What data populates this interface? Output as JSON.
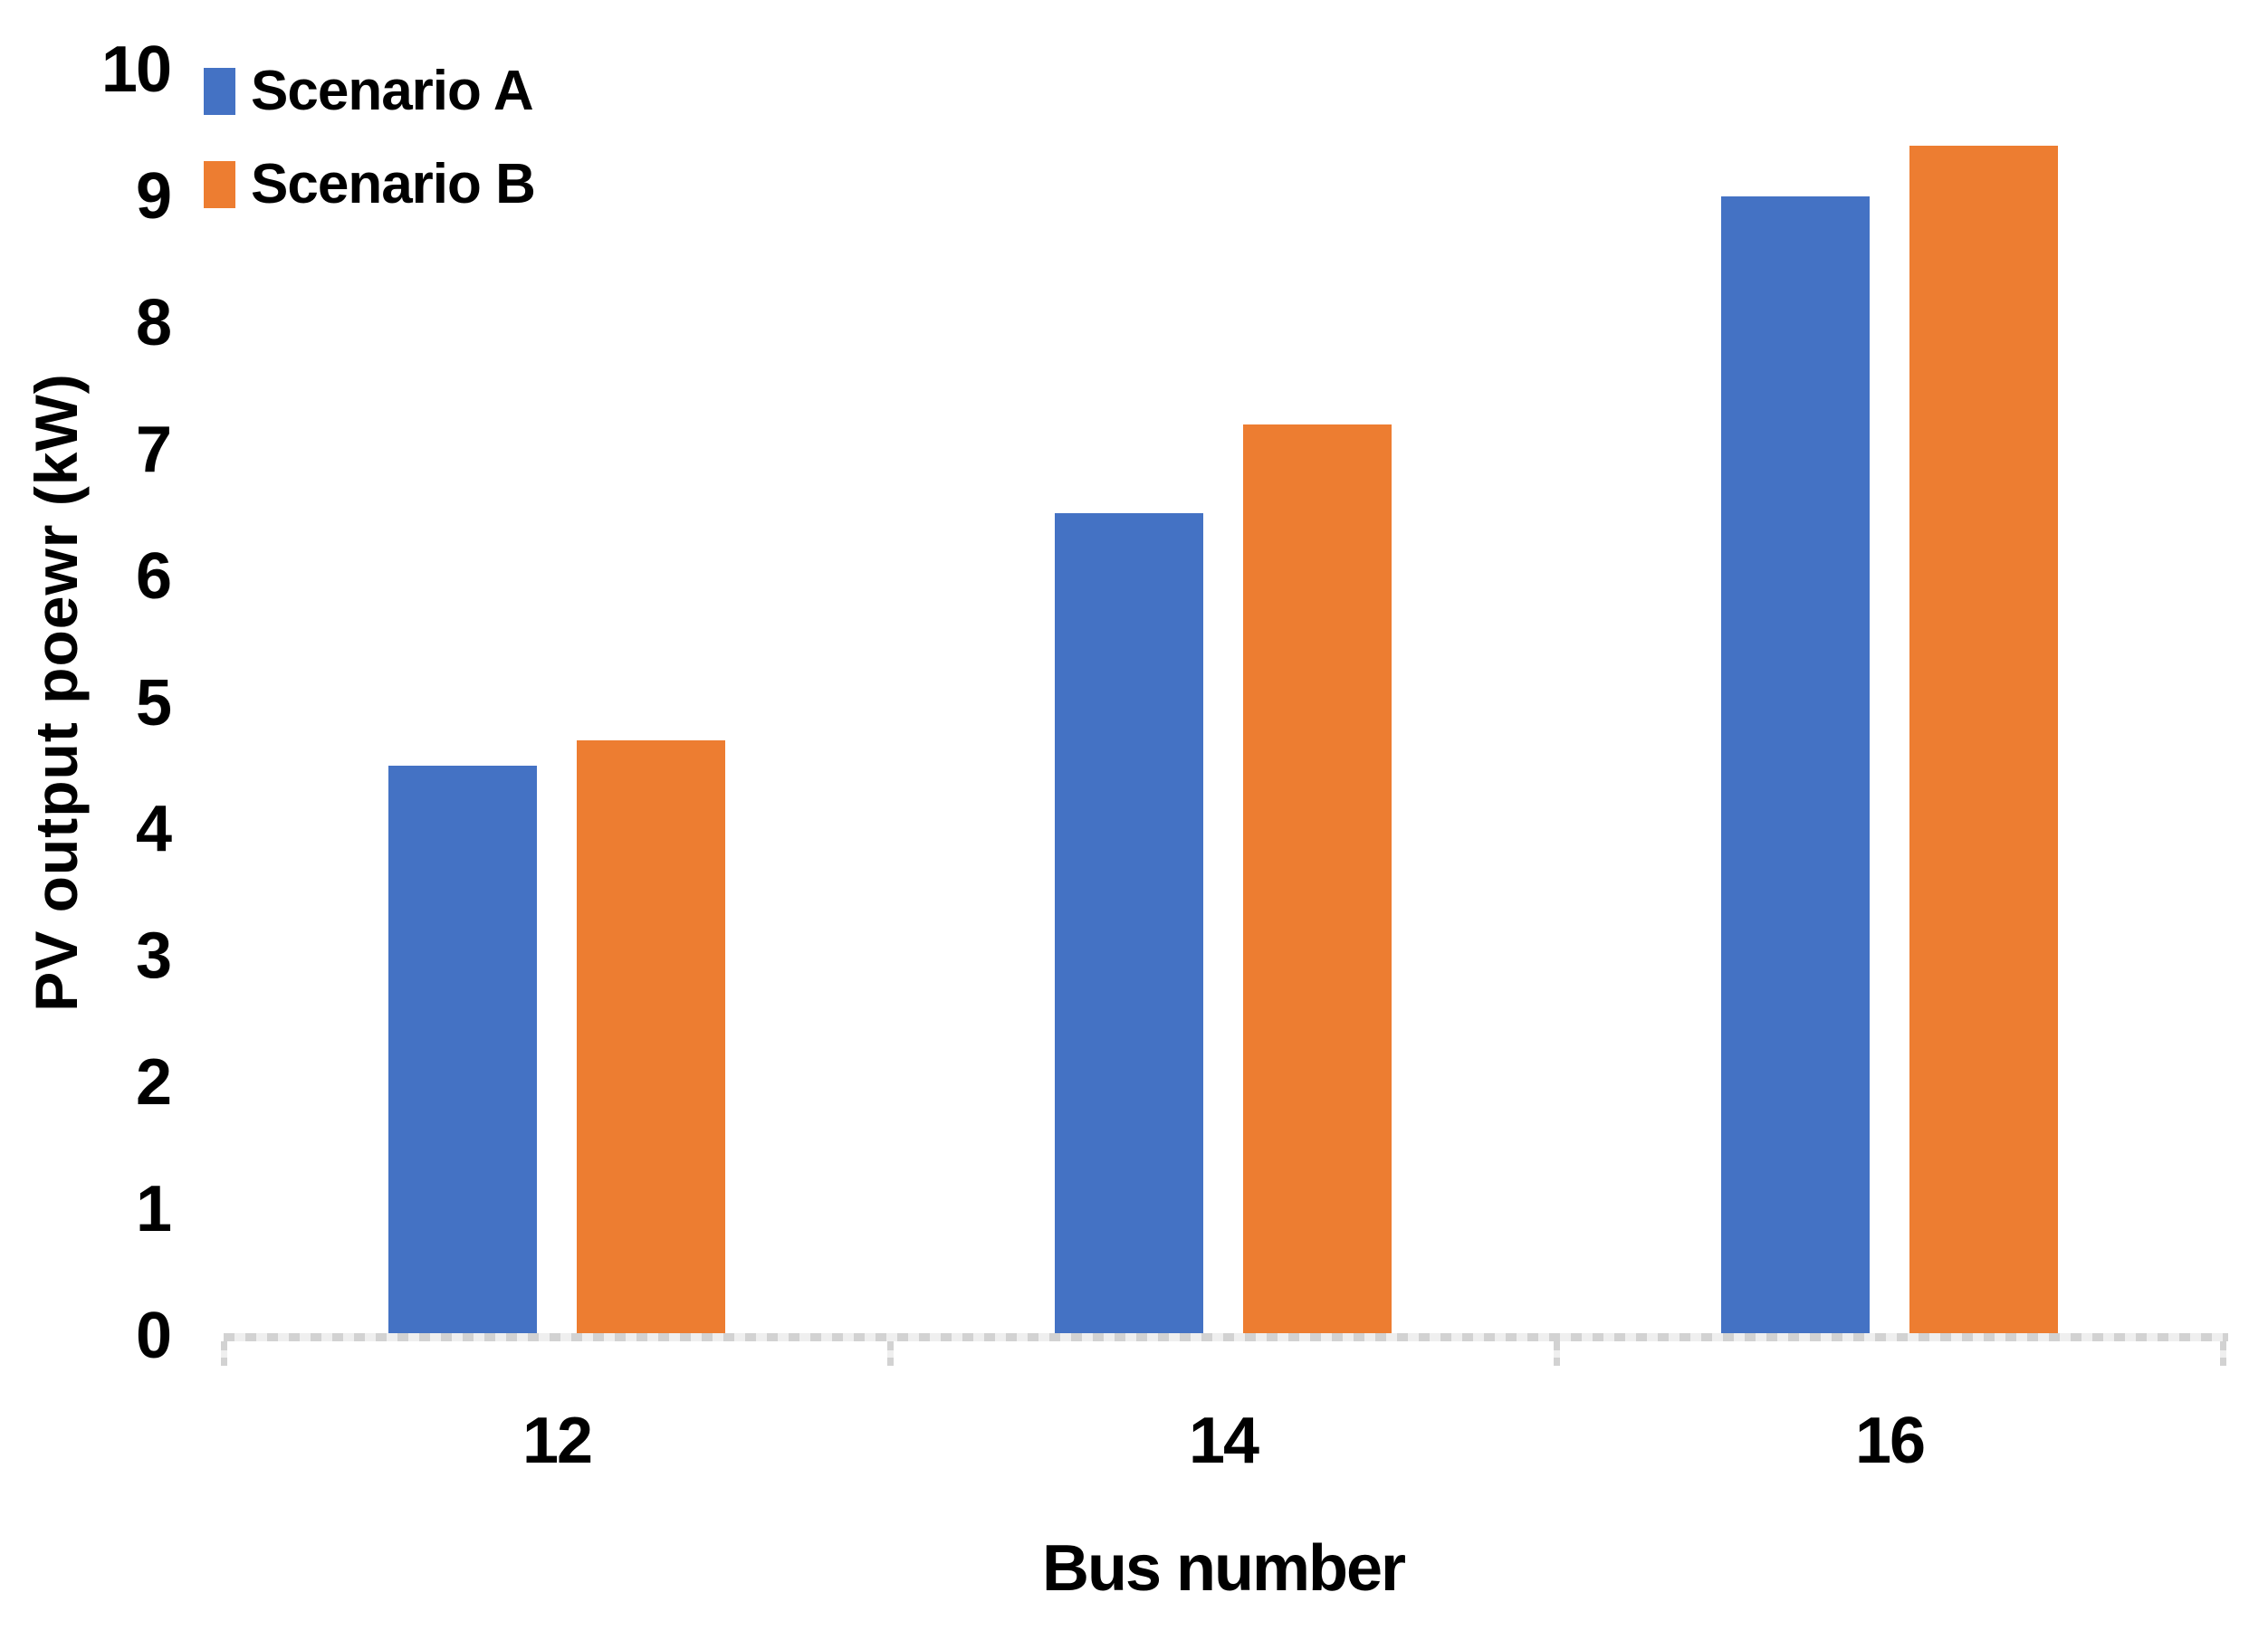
{
  "chart_data": {
    "type": "bar",
    "title": "",
    "categories": [
      "12",
      "14",
      "16"
    ],
    "series": [
      {
        "name": "Scenario A",
        "color": "#4472C4",
        "values": [
          4.5,
          6.5,
          9.0
        ]
      },
      {
        "name": "Scenario B",
        "color": "#ED7D31",
        "values": [
          4.7,
          7.2,
          9.4
        ]
      }
    ],
    "xlabel": "Bus number",
    "ylabel": "PV output poewr (kW)",
    "ylim": [
      0,
      10
    ],
    "ytick_step": 1,
    "yticks": [
      0,
      1,
      2,
      3,
      4,
      5,
      6,
      7,
      8,
      9,
      10
    ],
    "grid": false,
    "legend_position": "top-left",
    "axis_color": "#D2D2D2",
    "background_color": "#FFFFFF",
    "text_color": "#000000"
  }
}
